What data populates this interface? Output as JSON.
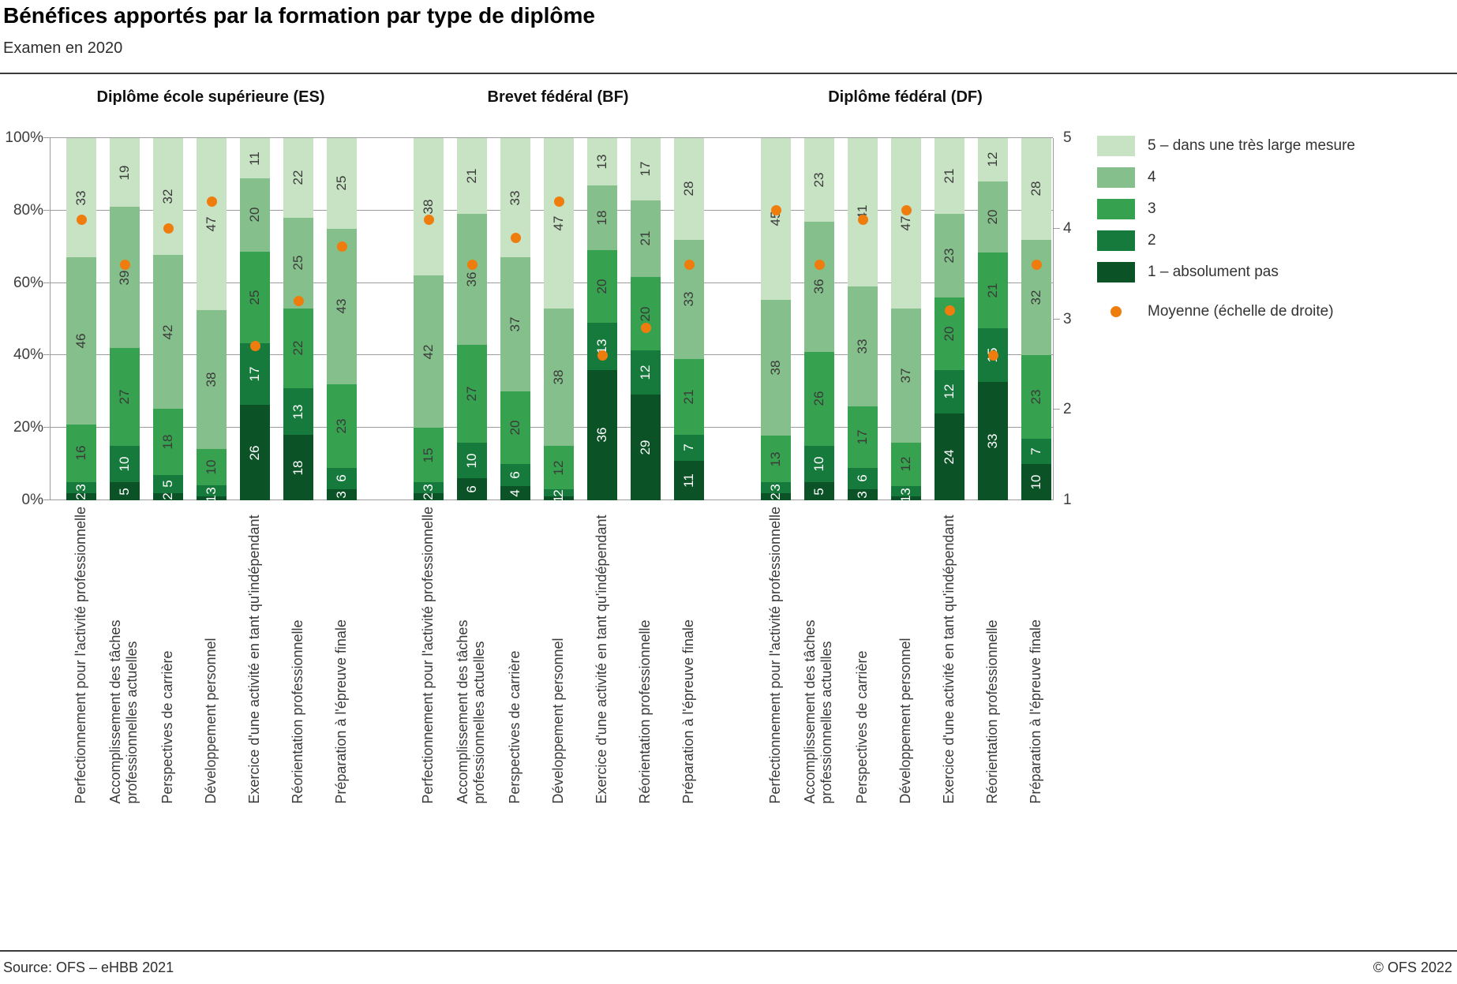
{
  "header": {
    "title": "Bénéfices apportés par la formation par type de diplôme",
    "subtitle": "Examen en 2020"
  },
  "footer": {
    "source": "Source: OFS – eHBB 2021",
    "copyright": "© OFS 2022"
  },
  "legend": {
    "items": [
      {
        "level": 5,
        "label": "5 – dans une très large mesure"
      },
      {
        "level": 4,
        "label": "4"
      },
      {
        "level": 3,
        "label": "3"
      },
      {
        "level": 2,
        "label": "2"
      },
      {
        "level": 1,
        "label": "1 – absolument pas"
      }
    ],
    "mean_label": "Moyenne  (échelle de droite)"
  },
  "chart_data": {
    "type": "bar",
    "stacked": "percent",
    "grid": true,
    "level_colors": [
      "#0b5227",
      "#157a3c",
      "#36a14e",
      "#85bf8b",
      "#c8e3c4"
    ],
    "mean_color": "#ee7d0e",
    "left_axis": {
      "range": [
        0,
        100
      ],
      "ticks": [
        {
          "pct": 0,
          "label": "0%"
        },
        {
          "pct": 20,
          "label": "20%"
        },
        {
          "pct": 40,
          "label": "40%"
        },
        {
          "pct": 60,
          "label": "60%"
        },
        {
          "pct": 80,
          "label": "80%"
        },
        {
          "pct": 100,
          "label": "100%"
        }
      ]
    },
    "right_axis": {
      "range": [
        1,
        5
      ],
      "ticks": [
        {
          "pct": 0,
          "label": "1"
        },
        {
          "pct": 25,
          "label": "2"
        },
        {
          "pct": 50,
          "label": "3"
        },
        {
          "pct": 75,
          "label": "4"
        },
        {
          "pct": 100,
          "label": "5"
        }
      ]
    },
    "categories": [
      [
        "Perfectionnement pour l'activité professionnelle"
      ],
      [
        "Accomplissement des tâches",
        "professionnelles actuelles"
      ],
      [
        "Perspectives de carrière"
      ],
      [
        "Développement personnel"
      ],
      [
        "Exercice d'une activité en tant qu'indépendant"
      ],
      [
        "Réorientation professionnelle"
      ],
      [
        "Préparation à l'épreuve finale"
      ]
    ],
    "groups": [
      {
        "name": "Diplôme école supérieure (ES)",
        "bars": [
          {
            "v": [
              2,
              3,
              16,
              46,
              33
            ],
            "mean": 4.1
          },
          {
            "v": [
              5,
              10,
              27,
              39,
              19
            ],
            "mean": 3.6
          },
          {
            "v": [
              2,
              5,
              18,
              42,
              32
            ],
            "mean": 4.0
          },
          {
            "v": [
              1,
              3,
              10,
              38,
              47
            ],
            "mean": 4.3
          },
          {
            "v": [
              26,
              17,
              25,
              20,
              11
            ],
            "mean": 2.7
          },
          {
            "v": [
              18,
              13,
              22,
              25,
              22
            ],
            "mean": 3.2
          },
          {
            "v": [
              3,
              6,
              23,
              43,
              25
            ],
            "mean": 3.8
          }
        ]
      },
      {
        "name": "Brevet fédéral (BF)",
        "bars": [
          {
            "v": [
              2,
              3,
              15,
              42,
              38
            ],
            "mean": 4.1
          },
          {
            "v": [
              6,
              10,
              27,
              36,
              21
            ],
            "mean": 3.6
          },
          {
            "v": [
              4,
              6,
              20,
              37,
              33
            ],
            "mean": 3.9
          },
          {
            "v": [
              1,
              2,
              12,
              38,
              47
            ],
            "mean": 4.3
          },
          {
            "v": [
              36,
              13,
              20,
              18,
              13
            ],
            "mean": 2.6
          },
          {
            "v": [
              29,
              12,
              20,
              21,
              17
            ],
            "mean": 2.9
          },
          {
            "v": [
              11,
              7,
              21,
              33,
              28
            ],
            "mean": 3.6
          }
        ]
      },
      {
        "name": "Diplôme fédéral (DF)",
        "bars": [
          {
            "v": [
              2,
              3,
              13,
              38,
              45
            ],
            "mean": 4.2
          },
          {
            "v": [
              5,
              10,
              26,
              36,
              23
            ],
            "mean": 3.6
          },
          {
            "v": [
              3,
              6,
              17,
              33,
              41
            ],
            "mean": 4.1
          },
          {
            "v": [
              1,
              3,
              12,
              37,
              47
            ],
            "mean": 4.2
          },
          {
            "v": [
              24,
              12,
              20,
              23,
              21
            ],
            "mean": 3.1
          },
          {
            "v": [
              33,
              15,
              21,
              20,
              12
            ],
            "mean": 2.6
          },
          {
            "v": [
              10,
              7,
              23,
              32,
              28
            ],
            "mean": 3.6
          }
        ]
      }
    ]
  }
}
